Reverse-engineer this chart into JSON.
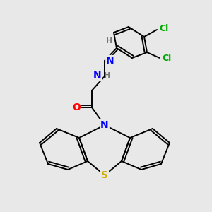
{
  "background_color": "#e8e8e8",
  "atom_colors": {
    "C": "#000000",
    "N": "#0000ff",
    "O": "#ff0000",
    "S": "#ccaa00",
    "Cl": "#00aa00",
    "H": "#777777"
  },
  "bond_color": "#000000",
  "figsize": [
    3.0,
    3.0
  ],
  "dpi": 100
}
